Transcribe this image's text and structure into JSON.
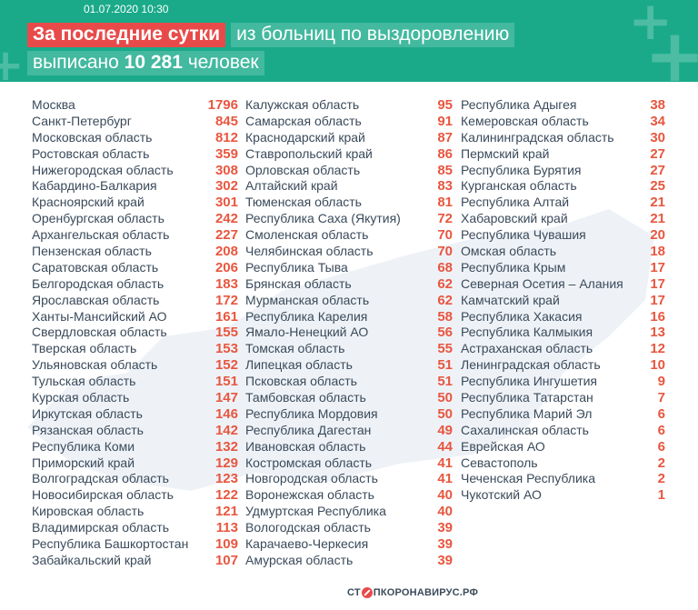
{
  "header": {
    "date": "01.07.2020 10:30",
    "line1_highlight": "За последние сутки",
    "line1_rest": "из больниц по выздоровлению",
    "line2_prefix": "выписано",
    "line2_number": "10 281",
    "line2_suffix": "человек"
  },
  "columns": [
    [
      {
        "name": "Москва",
        "value": "1796"
      },
      {
        "name": "Санкт-Петербург",
        "value": "845"
      },
      {
        "name": "Московская область",
        "value": "812"
      },
      {
        "name": "Ростовская область",
        "value": "359"
      },
      {
        "name": "Нижегородская область",
        "value": "308"
      },
      {
        "name": "Кабардино-Балкария",
        "value": "302"
      },
      {
        "name": "Красноярский край",
        "value": "301"
      },
      {
        "name": "Оренбургская область",
        "value": "242"
      },
      {
        "name": "Архангельская область",
        "value": "227"
      },
      {
        "name": "Пензенская область",
        "value": "208"
      },
      {
        "name": "Саратовская область",
        "value": "206"
      },
      {
        "name": "Белгородская область",
        "value": "183"
      },
      {
        "name": "Ярославская область",
        "value": "172"
      },
      {
        "name": "Ханты-Мансийский АО",
        "value": "161"
      },
      {
        "name": "Свердловская область",
        "value": "155"
      },
      {
        "name": "Тверская область",
        "value": "153"
      },
      {
        "name": "Ульяновская область",
        "value": "152"
      },
      {
        "name": "Тульская область",
        "value": "151"
      },
      {
        "name": "Курская область",
        "value": "147"
      },
      {
        "name": "Иркутская область",
        "value": "146"
      },
      {
        "name": "Рязанская область",
        "value": "142"
      },
      {
        "name": "Республика Коми",
        "value": "132"
      },
      {
        "name": "Приморский край",
        "value": "129"
      },
      {
        "name": "Волгоградская область",
        "value": "123"
      },
      {
        "name": "Новосибирская область",
        "value": "122"
      },
      {
        "name": "Кировская область",
        "value": "121"
      },
      {
        "name": "Владимирская область",
        "value": "113"
      },
      {
        "name": "Республика Башкортостан",
        "value": "109"
      },
      {
        "name": "Забайкальский край",
        "value": "107"
      }
    ],
    [
      {
        "name": "Калужская область",
        "value": "95"
      },
      {
        "name": "Самарская область",
        "value": "91"
      },
      {
        "name": "Краснодарский край",
        "value": "87"
      },
      {
        "name": "Ставропольский край",
        "value": "86"
      },
      {
        "name": "Орловская область",
        "value": "85"
      },
      {
        "name": "Алтайский край",
        "value": "83"
      },
      {
        "name": "Тюменская область",
        "value": "81"
      },
      {
        "name": "Республика Саха (Якутия)",
        "value": "72"
      },
      {
        "name": "Смоленская область",
        "value": "70"
      },
      {
        "name": "Челябинская область",
        "value": "70"
      },
      {
        "name": "Республика Тыва",
        "value": "68"
      },
      {
        "name": "Брянская область",
        "value": "62"
      },
      {
        "name": "Мурманская область",
        "value": "62"
      },
      {
        "name": "Республика Карелия",
        "value": "58"
      },
      {
        "name": "Ямало-Ненецкий АО",
        "value": "56"
      },
      {
        "name": "Томская область",
        "value": "55"
      },
      {
        "name": "Липецкая область",
        "value": "51"
      },
      {
        "name": "Псковская область",
        "value": "51"
      },
      {
        "name": "Тамбовская область",
        "value": "50"
      },
      {
        "name": "Республика Мордовия",
        "value": "50"
      },
      {
        "name": "Республика Дагестан",
        "value": "49"
      },
      {
        "name": "Ивановская область",
        "value": "44"
      },
      {
        "name": "Костромская область",
        "value": "41"
      },
      {
        "name": "Новгородская область",
        "value": "41"
      },
      {
        "name": "Воронежская область",
        "value": "40"
      },
      {
        "name": "Удмуртская Республика",
        "value": "40"
      },
      {
        "name": "Вологодская область",
        "value": "39"
      },
      {
        "name": "Карачаево-Черкесия",
        "value": "39"
      },
      {
        "name": "Амурская область",
        "value": "39"
      }
    ],
    [
      {
        "name": "Республика Адыгея",
        "value": "38"
      },
      {
        "name": "Кемеровская область",
        "value": "34"
      },
      {
        "name": "Калининградская область",
        "value": "30"
      },
      {
        "name": "Пермский край",
        "value": "27"
      },
      {
        "name": "Республика Бурятия",
        "value": "27"
      },
      {
        "name": "Курганская область",
        "value": "25"
      },
      {
        "name": "Республика Алтай",
        "value": "21"
      },
      {
        "name": "Хабаровский край",
        "value": "21"
      },
      {
        "name": "Республика Чувашия",
        "value": "20"
      },
      {
        "name": "Омская область",
        "value": "18"
      },
      {
        "name": "Республика Крым",
        "value": "17"
      },
      {
        "name": "Северная Осетия – Алания",
        "value": "17"
      },
      {
        "name": "Камчатский край",
        "value": "17"
      },
      {
        "name": "Республика Хакасия",
        "value": "16"
      },
      {
        "name": "Республика Калмыкия",
        "value": "13"
      },
      {
        "name": "Астраханская область",
        "value": "12"
      },
      {
        "name": "Ленинградская область",
        "value": "10"
      },
      {
        "name": "Республика Ингушетия",
        "value": "9"
      },
      {
        "name": "Республика Татарстан",
        "value": "7"
      },
      {
        "name": "Республика Марий Эл",
        "value": "6"
      },
      {
        "name": "Сахалинская область",
        "value": "6"
      },
      {
        "name": "Еврейская АО",
        "value": "6"
      },
      {
        "name": "Севастополь",
        "value": "2"
      },
      {
        "name": "Чеченская Республика",
        "value": "2"
      },
      {
        "name": "Чукотский АО",
        "value": "1"
      }
    ]
  ],
  "footer": {
    "logo_left": "СТ",
    "logo_right": "ПКОРОНАВИРУС.РФ"
  },
  "colors": {
    "header_bg": "#1aaa8a",
    "highlight": "#e84a4a",
    "value_color": "#e8563f",
    "text_color": "#3a4a5a"
  }
}
